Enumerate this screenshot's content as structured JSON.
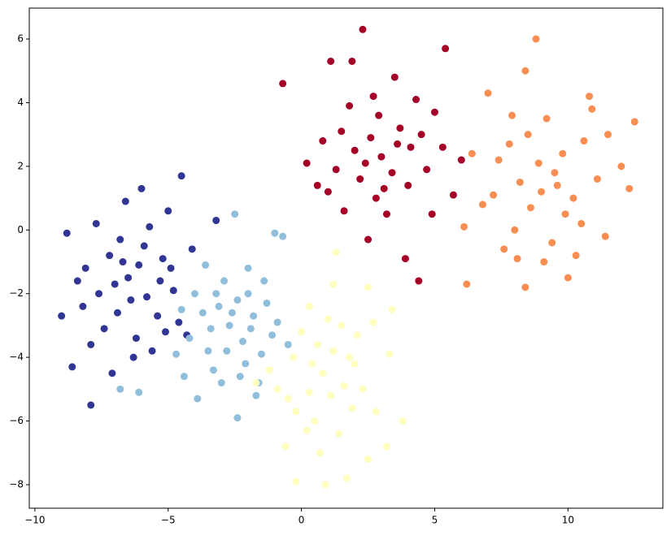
{
  "chart_data": {
    "type": "scatter",
    "xlim": [
      -10.21,
      13.56
    ],
    "ylim": [
      -8.74,
      6.97
    ],
    "xticks": [
      {
        "value": -10,
        "label": "−10"
      },
      {
        "value": -5,
        "label": "−5"
      },
      0,
      5,
      10
    ],
    "yticks": [
      {
        "value": -8,
        "label": "−8"
      },
      {
        "value": -6,
        "label": "−6"
      },
      {
        "value": -4,
        "label": "−4"
      },
      {
        "value": -2,
        "label": "−2"
      },
      0,
      2,
      4,
      6
    ],
    "series": [
      {
        "color": "#a50026",
        "x": [
          3.0,
          2.3,
          5.4,
          1.1,
          1.9,
          3.5,
          -0.7,
          4.4,
          3.9,
          1.0,
          0.2,
          0.6,
          5.0,
          4.3,
          2.6,
          3.4,
          2.0,
          4.1,
          1.5,
          2.8,
          3.7,
          2.2,
          4.7,
          1.3,
          3.2,
          2.5,
          1.6,
          5.7,
          6.0,
          5.3,
          3.6,
          2.9,
          4.5,
          1.8,
          0.8,
          4.0,
          2.4,
          3.1,
          4.9,
          2.7
        ],
        "y": [
          2.3,
          6.3,
          5.7,
          5.3,
          5.3,
          4.8,
          4.6,
          -1.6,
          -0.9,
          1.2,
          2.1,
          1.4,
          3.7,
          4.1,
          2.9,
          1.8,
          2.5,
          2.6,
          3.1,
          1.0,
          3.2,
          1.6,
          1.9,
          1.9,
          0.5,
          -0.3,
          0.6,
          1.1,
          2.2,
          2.6,
          2.7,
          3.6,
          3.0,
          3.9,
          2.8,
          1.4,
          2.1,
          1.3,
          0.5,
          4.2
        ]
      },
      {
        "color": "#f98e52",
        "x": [
          9.0,
          8.8,
          8.4,
          10.8,
          7.0,
          6.2,
          8.4,
          10.0,
          6.1,
          6.8,
          12.5,
          12.0,
          12.3,
          7.4,
          6.4,
          7.8,
          9.5,
          8.6,
          10.2,
          9.8,
          8.2,
          10.6,
          9.2,
          8.0,
          9.4,
          10.5,
          11.1,
          7.6,
          11.5,
          9.9,
          8.9,
          7.2,
          10.3,
          11.4,
          8.5,
          9.6,
          7.9,
          10.9,
          8.1,
          9.1
        ],
        "y": [
          1.2,
          6.0,
          5.0,
          4.2,
          4.3,
          -1.7,
          -1.8,
          -1.5,
          0.1,
          0.8,
          3.4,
          2.0,
          1.3,
          2.2,
          2.4,
          2.7,
          1.8,
          0.7,
          1.0,
          2.4,
          1.5,
          2.8,
          3.5,
          0.0,
          -0.4,
          0.2,
          1.6,
          -0.6,
          3.0,
          0.5,
          2.1,
          1.1,
          -0.8,
          -0.2,
          3.0,
          1.4,
          3.6,
          3.8,
          -0.9,
          -1.0
        ]
      },
      {
        "color": "#313695",
        "x": [
          -6.5,
          -7.2,
          -5.8,
          -8.1,
          -6.9,
          -5.2,
          -7.6,
          -6.1,
          -4.8,
          -9.0,
          -8.6,
          -7.9,
          -6.6,
          -5.0,
          -4.5,
          -6.0,
          -7.7,
          -8.8,
          -6.2,
          -5.6,
          -4.6,
          -7.1,
          -5.4,
          -6.8,
          -7.4,
          -8.2,
          -5.9,
          -4.9,
          -6.4,
          -7.0,
          -5.3,
          -6.7,
          -8.4,
          -3.2,
          -4.1,
          -5.7,
          -6.3,
          -7.9,
          -4.3,
          -5.1
        ],
        "y": [
          -1.5,
          -0.8,
          -2.1,
          -1.2,
          -2.6,
          -0.9,
          -2.0,
          -1.1,
          -1.9,
          -2.7,
          -4.3,
          -5.5,
          0.9,
          0.6,
          1.7,
          1.3,
          0.2,
          -0.1,
          -3.4,
          -3.8,
          -2.9,
          -4.5,
          -2.7,
          -0.3,
          -3.1,
          -2.4,
          -0.5,
          -1.2,
          -2.2,
          -1.7,
          -1.6,
          -1.0,
          -1.6,
          0.3,
          -0.6,
          0.1,
          -4.0,
          -3.6,
          -3.3,
          -3.2
        ]
      },
      {
        "color": "#91bfdb",
        "x": [
          -2.7,
          -3.1,
          -2.2,
          -1.8,
          -3.5,
          -2.9,
          -2.0,
          -2.5,
          -3.3,
          -1.5,
          -4.4,
          -6.8,
          -6.1,
          -3.9,
          -2.4,
          -1.0,
          -0.7,
          -2.4,
          -3.7,
          -4.0,
          -1.3,
          -1.1,
          -2.1,
          -3.0,
          -1.6,
          -4.2,
          -3.4,
          -2.6,
          -1.9,
          -3.6,
          -2.8,
          -1.4,
          -4.7,
          -0.9,
          -2.3,
          -3.2,
          -0.5,
          -1.7,
          -4.5,
          -2.0
        ],
        "y": [
          -3.0,
          -2.4,
          -3.5,
          -2.7,
          -3.8,
          -1.6,
          -1.2,
          0.5,
          -4.4,
          -3.9,
          -4.6,
          -5.0,
          -5.1,
          -5.3,
          -5.9,
          -0.1,
          -0.2,
          -2.2,
          -2.6,
          -2.0,
          -2.3,
          -3.3,
          -4.2,
          -4.8,
          -4.8,
          -3.4,
          -3.1,
          -2.6,
          -3.1,
          -1.1,
          -3.8,
          -1.6,
          -3.9,
          -2.9,
          -4.6,
          -2.0,
          -3.6,
          -5.2,
          -2.5,
          -2.0
        ]
      },
      {
        "color": "#ffffbf",
        "x": [
          0.8,
          1.2,
          0.3,
          1.6,
          -0.3,
          2.1,
          0.5,
          -0.2,
          1.9,
          2.8,
          3.8,
          3.2,
          2.5,
          1.7,
          0.9,
          -0.2,
          -0.6,
          1.2,
          0.3,
          2.5,
          3.4,
          3.3,
          0.0,
          -1.2,
          -0.9,
          1.0,
          1.5,
          2.0,
          0.6,
          -0.5,
          1.4,
          0.2,
          2.3,
          1.1,
          0.4,
          1.8,
          -1.7,
          2.7,
          0.7,
          1.3
        ],
        "y": [
          -4.5,
          -3.8,
          -5.1,
          -4.9,
          -4.0,
          -3.3,
          -6.0,
          -5.7,
          -5.6,
          -5.7,
          -6.0,
          -6.8,
          -7.2,
          -7.8,
          -8.0,
          -7.9,
          -6.8,
          -1.7,
          -2.4,
          -1.8,
          -2.5,
          -3.9,
          -3.2,
          -4.4,
          -5.0,
          -2.8,
          -3.0,
          -4.2,
          -3.6,
          -5.3,
          -6.4,
          -6.3,
          -5.0,
          -5.2,
          -4.2,
          -4.0,
          -4.8,
          -2.9,
          -7.0,
          -0.7
        ]
      }
    ]
  }
}
